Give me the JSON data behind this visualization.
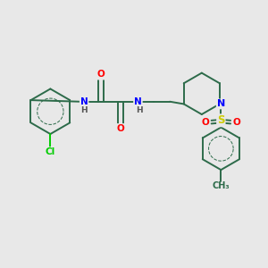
{
  "background_color": "#e8e8e8",
  "bond_color": "#2d6b4a",
  "atom_colors": {
    "N": "#0000ff",
    "O": "#ff0000",
    "Cl": "#00cc00",
    "S": "#cccc00",
    "C": "#2d6b4a",
    "H": "#555555"
  },
  "figsize": [
    3.0,
    3.0
  ],
  "dpi": 100,
  "xlim": [
    0,
    10
  ],
  "ylim": [
    0,
    10
  ]
}
